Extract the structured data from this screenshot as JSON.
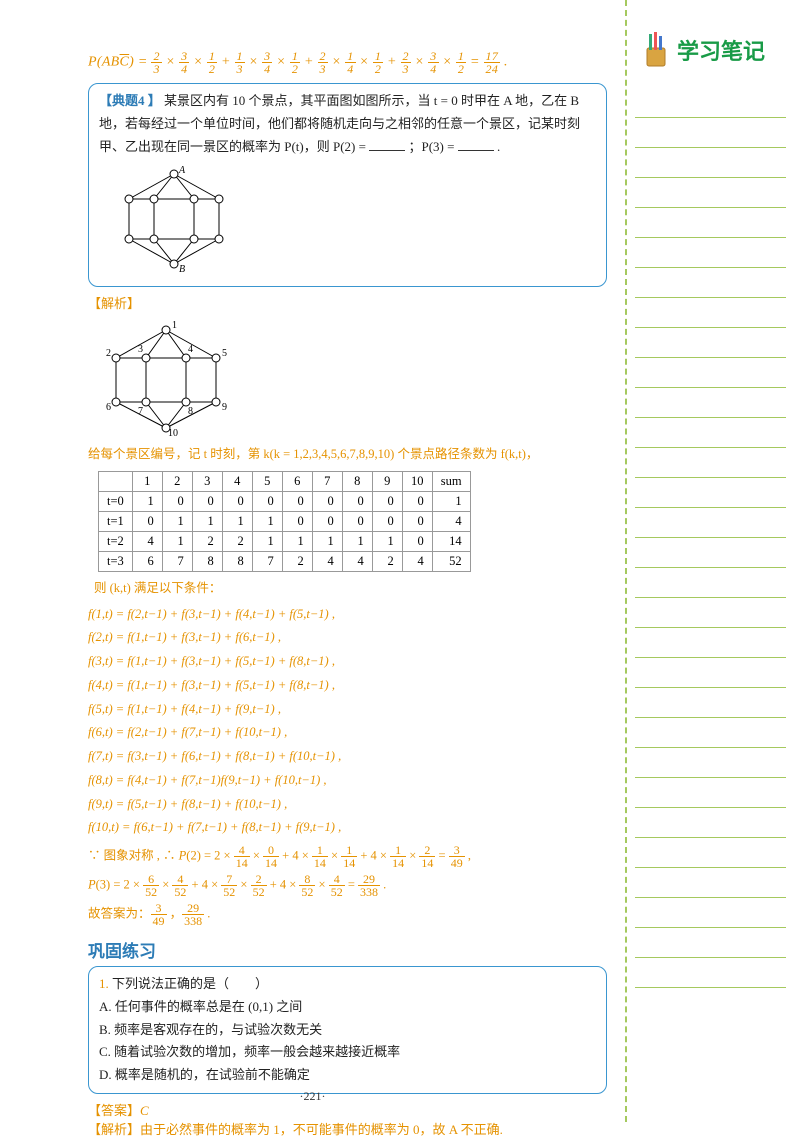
{
  "sidebar": {
    "title": "学习笔记",
    "line_count": 30
  },
  "formula_top": "P(AB̅C) = 2/3 × 3/4 × 1/2 + 1/3 × 3/4 × 1/2 + 2/3 × 1/4 × 1/2 + 2/3 × 3/4 × 1/2 = 17/24 .",
  "problem4": {
    "tag": "【典题4 】",
    "text_a": "某景区内有 10 个景点，其平面图如图所示，当 t = 0 时甲在 A 地，乙在 B 地，若每经过一个单位时间，他们都将随机走向与之相邻的任意一个景区，记某时刻甲、乙出现在同一景区的概率为 P(t)，则 P(2) = ",
    "text_b": " ；P(3) = ",
    "text_c": " ."
  },
  "analysis_label": "【解析】",
  "number_caption": "给每个景区编号，记 t 时刻，第 k(k = 1,2,3,4,5,6,7,8,9,10) 个景点路径条数为 f(k,t)，",
  "node_labels": [
    "1",
    "2",
    "3",
    "4",
    "5",
    "6",
    "7",
    "8",
    "9",
    "10"
  ],
  "table": {
    "headers": [
      "",
      "1",
      "2",
      "3",
      "4",
      "5",
      "6",
      "7",
      "8",
      "9",
      "10",
      "sum"
    ],
    "rows": [
      [
        "t=0",
        "1",
        "0",
        "0",
        "0",
        "0",
        "0",
        "0",
        "0",
        "0",
        "0",
        "1"
      ],
      [
        "t=1",
        "0",
        "1",
        "1",
        "1",
        "1",
        "0",
        "0",
        "0",
        "0",
        "0",
        "4"
      ],
      [
        "t=2",
        "4",
        "1",
        "2",
        "2",
        "1",
        "1",
        "1",
        "1",
        "1",
        "0",
        "14"
      ],
      [
        "t=3",
        "6",
        "7",
        "8",
        "8",
        "7",
        "2",
        "4",
        "4",
        "2",
        "4",
        "52"
      ]
    ]
  },
  "cond_label": "则 (k,t) 满足以下条件：",
  "equations": [
    "f(1,t) = f(2,t−1) + f(3,t−1) + f(4,t−1) + f(5,t−1) ,",
    "f(2,t) = f(1,t−1) + f(3,t−1) + f(6,t−1) ,",
    "f(3,t) = f(1,t−1) + f(3,t−1) + f(5,t−1) + f(8,t−1) ,",
    "f(4,t) = f(1,t−1) + f(3,t−1) + f(5,t−1) + f(8,t−1) ,",
    "f(5,t) = f(1,t−1) + f(4,t−1) + f(9,t−1) ,",
    "f(6,t) = f(2,t−1) + f(7,t−1) + f(10,t−1) ,",
    "f(7,t) = f(3,t−1) + f(6,t−1) + f(8,t−1) + f(10,t−1) ,",
    "f(8,t) = f(4,t−1) + f(7,t−1)f(9,t−1) + f(10,t−1) ,",
    "f(9,t) = f(5,t−1) + f(8,t−1) + f(10,t−1) ,",
    "f(10,t) = f(6,t−1) + f(7,t−1) + f(8,t−1) + f(9,t−1) ,"
  ],
  "sym_line": "∵ 图象对称 , ∴ P(2) = 2 × 4/14 × 0/14 + 4 × 1/14 × 1/14 + 4 × 1/14 × 2/14 = 3/49 ,",
  "p3_line": "P(3) = 2 × 6/52 × 4/52 + 4 × 7/52 × 2/52 + 4 × 8/52 × 4/52 = 29/338 .",
  "final_ans": "故答案为：3/49 ，29/338 .",
  "practice": {
    "title": "巩固练习",
    "q1_num": "1.",
    "q1_stem": "下列说法正确的是（　　）",
    "q1_A": "A. 任何事件的概率总是在 (0,1) 之间",
    "q1_B": "B. 频率是客观存在的，与试验次数无关",
    "q1_C": "C. 随着试验次数的增加，频率一般会越来越接近概率",
    "q1_D": "D. 概率是随机的，在试验前不能确定",
    "ans_tag": "【答案】",
    "ans": "C",
    "exp_tag": "【解析】",
    "exp": "由于必然事件的概率为 1，不可能事件的概率为 0，故 A 不正确."
  },
  "page_number": "·221·",
  "colors": {
    "orange": "#e59200",
    "blue": "#2d7cb6",
    "green": "#a5c95e",
    "darkgreen": "#199b47"
  }
}
